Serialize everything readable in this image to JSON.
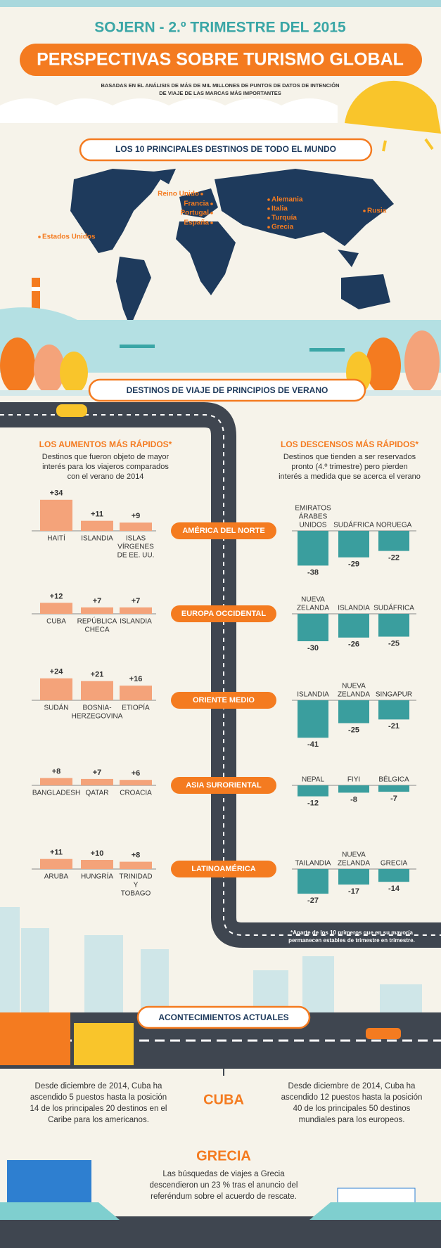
{
  "header": {
    "title": "SOJERN - 2.º TRIMESTRE DEL 2015",
    "banner": "PERSPECTIVAS SOBRE TURISMO GLOBAL",
    "subtitle": [
      "BASADAS EN EL ANÁLISIS DE MÁS DE MIL MILLONES DE PUNTOS DE DATOS DE INTENCIÓN",
      "DE VIAJE DE LAS MARCAS MÁS IMPORTANTES"
    ]
  },
  "map": {
    "title": "LOS 10 PRINCIPALES DESTINOS DE TODO EL MUNDO",
    "labels": [
      "Estados Unidos",
      "Reino Unido",
      "Francia",
      "Portugal",
      "España",
      "Alemania",
      "Italia",
      "Turquía",
      "Grecia",
      "Rusia"
    ]
  },
  "summer": {
    "title": "DESTINOS DE VIAJE DE PRINCIPIOS DE VERANO",
    "increases": {
      "title": "LOS AUMENTOS MÁS RÁPIDOS*",
      "description": [
        "Destinos que fueron objeto de mayor",
        "interés para los viajeros comparados",
        "con el verano de 2014"
      ]
    },
    "decreases": {
      "title": "LOS DESCENSOS MÁS RÁPIDOS*",
      "description": [
        "Destinos que tienden a ser reservados",
        "pronto (4.º trimestre) pero pierden",
        "interés a medida que se acerca el verano"
      ]
    },
    "regions": [
      {
        "name": "AMÉRICA DEL NORTE",
        "increases": {
          "categories": [
            [
              "HAITÍ"
            ],
            [
              "ISLANDIA"
            ],
            [
              "ISLAS",
              "VÍRGENES",
              "DE EE. UU."
            ]
          ],
          "values": [
            34,
            11,
            9
          ],
          "value_labels": [
            "+34",
            "+11",
            "+9"
          ]
        },
        "decreases": {
          "categories": [
            [
              "EMIRATOS",
              "ÁRABES",
              "UNIDOS"
            ],
            [
              "SUDÁFRICA"
            ],
            [
              "NORUEGA"
            ]
          ],
          "values": [
            -38,
            -29,
            -22
          ]
        }
      },
      {
        "name": "EUROPA OCCIDENTAL",
        "increases": {
          "categories": [
            [
              "CUBA"
            ],
            [
              "REPÚBLICA",
              "CHECA"
            ],
            [
              "ISLANDIA"
            ]
          ],
          "values": [
            12,
            7,
            7
          ],
          "value_labels": [
            "+12",
            "+7",
            "+7"
          ]
        },
        "decreases": {
          "categories": [
            [
              "NUEVA",
              "ZELANDA"
            ],
            [
              "ISLANDIA"
            ],
            [
              "SUDÁFRICA"
            ]
          ],
          "values": [
            -30,
            -26,
            -25
          ]
        }
      },
      {
        "name": "ORIENTE MEDIO",
        "increases": {
          "categories": [
            [
              "SUDÁN"
            ],
            [
              "BOSNIA-",
              "HERZEGOVINA"
            ],
            [
              "ETIOPÍA"
            ]
          ],
          "values": [
            24,
            21,
            16
          ],
          "value_labels": [
            "+24",
            "+21",
            "+16"
          ]
        },
        "decreases": {
          "categories": [
            [
              "ISLANDIA"
            ],
            [
              "NUEVA",
              "ZELANDA"
            ],
            [
              "SINGAPUR"
            ]
          ],
          "values": [
            -41,
            -25,
            -21
          ]
        }
      },
      {
        "name": "ASIA SURORIENTAL",
        "increases": {
          "categories": [
            [
              "BANGLADESH"
            ],
            [
              "QATAR"
            ],
            [
              "CROACIA"
            ]
          ],
          "values": [
            8,
            7,
            6
          ],
          "value_labels": [
            "+8",
            "+7",
            "+6"
          ]
        },
        "decreases": {
          "categories": [
            [
              "NEPAL"
            ],
            [
              "FIYI"
            ],
            [
              "BÉLGICA"
            ]
          ],
          "values": [
            -12,
            -8,
            -7
          ]
        }
      },
      {
        "name": "LATINOAMÉRICA",
        "increases": {
          "categories": [
            [
              "ARUBA"
            ],
            [
              "HUNGRÍA"
            ],
            [
              "TRINIDAD",
              "Y",
              "TOBAGO"
            ]
          ],
          "values": [
            11,
            10,
            8
          ],
          "value_labels": [
            "+11",
            "+10",
            "+8"
          ]
        },
        "decreases": {
          "categories": [
            [
              "TAILANDIA"
            ],
            [
              "NUEVA",
              "ZELANDA"
            ],
            [
              "GRECIA"
            ]
          ],
          "values": [
            -27,
            -17,
            -14
          ]
        }
      }
    ],
    "footnote": [
      "*Aparte de los 10 primeros que en su mayoría",
      "permanecen estables de trimestre en trimestre."
    ]
  },
  "events": {
    "title": "ACONTECIMIENTOS ACTUALES",
    "cuba": {
      "title": "CUBA",
      "left": [
        "Desde diciembre de 2014, Cuba ha",
        "ascendido 5 puestos hasta la posición",
        "14 de los principales 20 destinos en el",
        "Caribe para los americanos."
      ],
      "right": [
        "Desde diciembre de 2014, Cuba ha",
        "ascendido 12 puestos hasta la posición",
        "40 de los principales 50 destinos",
        "mundiales para los europeos."
      ]
    },
    "greece": {
      "title": "GRECIA",
      "text": [
        "Las búsquedas de viajes a Grecia",
        "descendieron un 23 % tras el anuncio del",
        "referéndum sobre el acuerdo de rescate."
      ]
    }
  }
}
